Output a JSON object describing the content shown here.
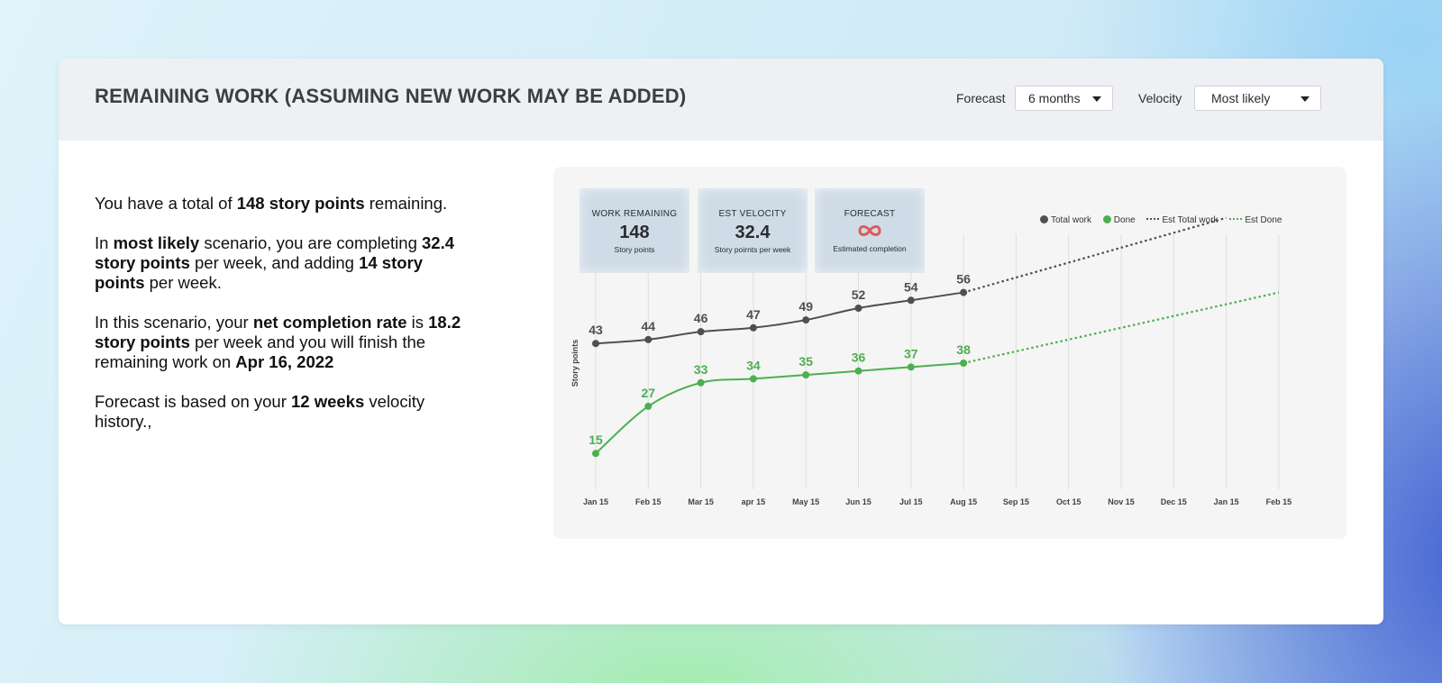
{
  "header": {
    "title": "REMAINING WORK (ASSUMING NEW WORK MAY BE ADDED)",
    "forecast_label": "Forecast",
    "forecast_value": "6 months",
    "velocity_label": "Velocity",
    "velocity_value": "Most likely"
  },
  "summary": {
    "p1": [
      "You have a total of ",
      "148 story points",
      " remaining."
    ],
    "p2": [
      "In ",
      "most likely",
      " scenario, you are completing ",
      "32.4 story points",
      " per week, and adding ",
      "14 story points",
      " per week."
    ],
    "p3": [
      "In this scenario, your ",
      "net completion rate",
      " is ",
      "18.2 story points",
      " per week and you will finish the remaining work on ",
      "Apr 16, 2022"
    ],
    "p4": [
      "Forecast is based on your ",
      "12 weeks",
      " velocity history.,"
    ]
  },
  "kpis": {
    "work_remaining": {
      "label": "WORK REMAINING",
      "value": "148",
      "sub": "Story points"
    },
    "est_velocity": {
      "label": "EST VELOCITY",
      "value": "32.4",
      "sub": "Story poirnts per week"
    },
    "forecast": {
      "label": "FORECAST",
      "icon": "infinity-icon",
      "sub": "Estimated completion"
    }
  },
  "colors": {
    "total": "#4d4f53",
    "done": "#4caf50",
    "infinity": "#e05a5a"
  },
  "chart_data": {
    "type": "line",
    "title": "",
    "xlabel": "",
    "ylabel": "Story points",
    "ylim": [
      10,
      80
    ],
    "categories": [
      "Jan 15",
      "Feb 15",
      "Mar 15",
      "apr 15",
      "May 15",
      "Jun 15",
      "Jul 15",
      "Aug 15",
      "Sep 15",
      "Oct 15",
      "Nov 15",
      "Dec 15",
      "Jan 15",
      "Feb 15"
    ],
    "series": [
      {
        "name": "Total work",
        "style": "solid",
        "values": [
          43,
          44,
          46,
          47,
          49,
          52,
          54,
          56,
          null,
          null,
          null,
          null,
          null,
          null
        ]
      },
      {
        "name": "Done",
        "style": "solid",
        "values": [
          15,
          27,
          33,
          34,
          35,
          36,
          37,
          38,
          null,
          null,
          null,
          null,
          null,
          null
        ]
      },
      {
        "name": "Est Total work",
        "style": "dotted",
        "values": [
          null,
          null,
          null,
          null,
          null,
          null,
          null,
          56,
          null,
          null,
          null,
          null,
          75,
          null
        ]
      },
      {
        "name": "Est Done",
        "style": "dotted",
        "values": [
          null,
          null,
          null,
          null,
          null,
          null,
          null,
          38,
          null,
          null,
          null,
          null,
          null,
          56
        ]
      }
    ],
    "legend": [
      "Total work",
      "Done",
      "Est Total work",
      "Est Done"
    ],
    "legend_position": "top-right",
    "grid": "vertical"
  }
}
